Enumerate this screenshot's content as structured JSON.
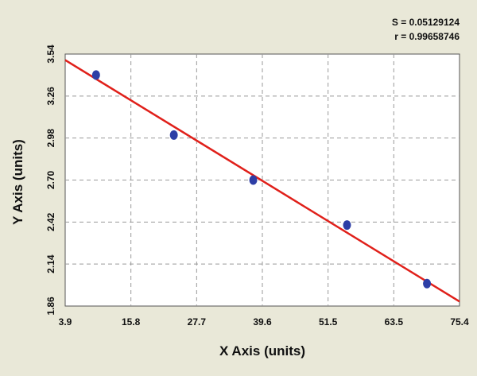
{
  "chart_data": {
    "type": "scatter",
    "title": "",
    "xlabel": "X Axis (units)",
    "ylabel": "Y Axis (units)",
    "xlim": [
      3.9,
      75.4
    ],
    "ylim": [
      1.86,
      3.54
    ],
    "x_ticks": [
      "3.9",
      "15.8",
      "27.7",
      "39.6",
      "51.5",
      "63.5",
      "75.4"
    ],
    "y_ticks": [
      "1.86",
      "2.14",
      "2.42",
      "2.70",
      "2.98",
      "3.26",
      "3.54"
    ],
    "grid": true,
    "stats": {
      "s": "S = 0.05129124",
      "r": "r = 0.99658746"
    },
    "series": [
      {
        "points": [
          {
            "x": 9.5,
            "y": 3.4
          },
          {
            "x": 23.6,
            "y": 3.0
          },
          {
            "x": 38.0,
            "y": 2.7
          },
          {
            "x": 55.0,
            "y": 2.4
          },
          {
            "x": 69.5,
            "y": 2.01
          }
        ],
        "color": "#2d3ea6"
      }
    ],
    "fit_line": {
      "x": [
        3.9,
        75.4
      ],
      "y": [
        3.5,
        1.89
      ],
      "color": "#e0201a"
    }
  }
}
